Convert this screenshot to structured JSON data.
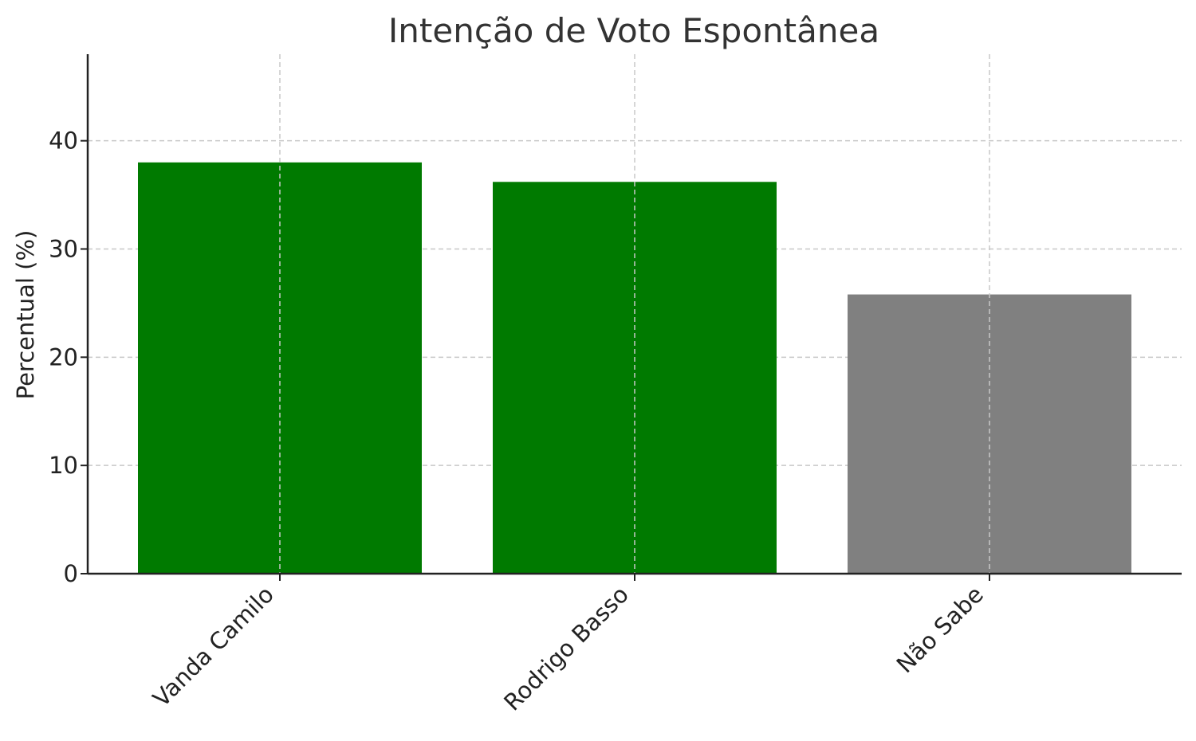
{
  "chart_data": {
    "type": "bar",
    "title": "Intenção de Voto Espontânea",
    "xlabel": "",
    "ylabel": "Percentual (%)",
    "categories": [
      "Vanda Camilo",
      "Rodrigo Basso",
      "Não Sabe"
    ],
    "values": [
      38.0,
      36.2,
      25.8
    ],
    "colors": [
      "#007a00",
      "#007a00",
      "#808080"
    ],
    "ylim": [
      0,
      48
    ],
    "yticks": [
      0,
      10,
      20,
      30,
      40
    ],
    "grid": true,
    "legend": "none"
  }
}
